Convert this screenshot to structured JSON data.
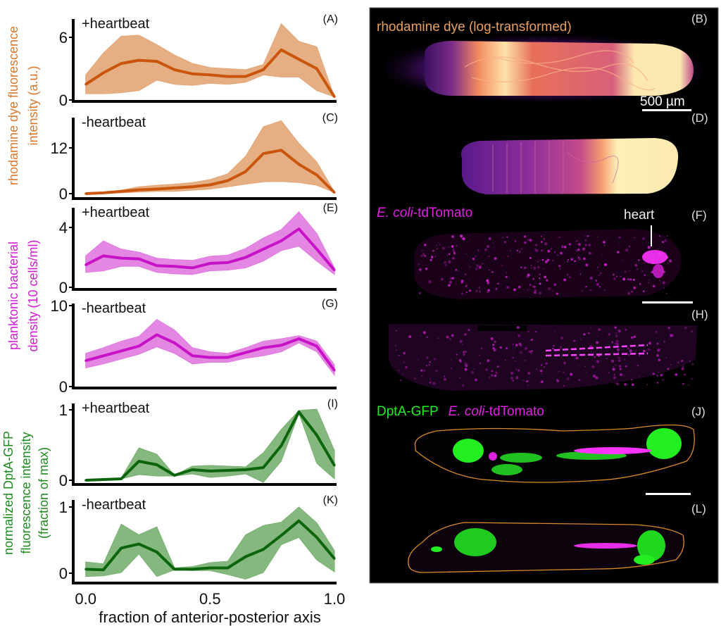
{
  "chart_data": [
    {
      "type": "area",
      "panel": "(A)",
      "condition": "+heartbeat",
      "yticks": [
        0,
        6
      ],
      "ylim": [
        0,
        7.8
      ],
      "color_line": "#c9560c",
      "color_fill": "#e3a575",
      "x": [
        0,
        0.071,
        0.143,
        0.214,
        0.286,
        0.357,
        0.429,
        0.5,
        0.571,
        0.643,
        0.714,
        0.786,
        0.857,
        0.929,
        1.0
      ],
      "mean": [
        1.5,
        2.6,
        3.5,
        3.8,
        3.7,
        2.9,
        2.5,
        2.4,
        2.25,
        2.25,
        2.9,
        4.8,
        3.9,
        3.0,
        0.3
      ],
      "upper": [
        2.4,
        4.5,
        6.1,
        6.2,
        5.3,
        4.3,
        3.5,
        3.1,
        3.0,
        2.9,
        3.4,
        7.3,
        5.6,
        5.1,
        0.3
      ],
      "lower": [
        0.6,
        0.6,
        0.7,
        0.9,
        1.9,
        1.5,
        1.4,
        1.6,
        1.5,
        1.7,
        2.4,
        2.2,
        2.2,
        0.9,
        0.3
      ]
    },
    {
      "type": "area",
      "panel": "(C)",
      "condition": "-heartbeat",
      "yticks": [
        0,
        12
      ],
      "ylim": [
        0,
        20
      ],
      "color_line": "#c9560c",
      "color_fill": "#e3a575",
      "x": [
        0,
        0.071,
        0.143,
        0.214,
        0.286,
        0.357,
        0.429,
        0.5,
        0.571,
        0.643,
        0.714,
        0.786,
        0.857,
        0.929,
        1.0
      ],
      "mean": [
        0,
        0.2,
        0.6,
        1.0,
        1.2,
        1.5,
        1.8,
        2.3,
        3.4,
        5.8,
        10.5,
        11.4,
        7.7,
        4.9,
        0.3
      ],
      "upper": [
        0,
        0.3,
        0.9,
        1.8,
        2.2,
        2.5,
        2.9,
        3.7,
        5.2,
        9.8,
        17.5,
        19.1,
        13.2,
        8.3,
        0.4
      ],
      "lower": [
        0,
        0,
        0.2,
        0.4,
        0.6,
        0.6,
        0.9,
        1.2,
        1.8,
        2.5,
        3.1,
        3.2,
        2.9,
        2.2,
        0.3
      ]
    },
    {
      "type": "area",
      "panel": "(E)",
      "condition": "+heartbeat",
      "yticks": [
        0,
        4
      ],
      "ylim": [
        0,
        5.3
      ],
      "color_line": "#c812c8",
      "color_fill": "#e07ae0",
      "x": [
        0,
        0.071,
        0.143,
        0.214,
        0.286,
        0.357,
        0.429,
        0.5,
        0.571,
        0.643,
        0.714,
        0.786,
        0.857,
        0.929,
        1.0
      ],
      "mean": [
        1.5,
        2.1,
        1.95,
        1.9,
        1.45,
        1.4,
        1.3,
        1.6,
        1.65,
        2.0,
        2.55,
        3.1,
        3.9,
        2.55,
        1.15
      ],
      "upper": [
        2.1,
        3.1,
        2.55,
        2.35,
        1.95,
        1.85,
        1.8,
        2.07,
        2.15,
        2.6,
        3.3,
        3.85,
        5.05,
        3.6,
        1.3
      ],
      "lower": [
        1.0,
        1.1,
        1.4,
        1.4,
        1.0,
        0.9,
        0.85,
        1.1,
        1.15,
        1.3,
        1.75,
        2.45,
        2.75,
        1.75,
        0.85
      ]
    },
    {
      "type": "area",
      "panel": "(G)",
      "condition": "-heartbeat",
      "yticks": [
        0,
        10
      ],
      "ylim": [
        0,
        10.2
      ],
      "color_line": "#c812c8",
      "color_fill": "#e07ae0",
      "x": [
        0,
        0.071,
        0.143,
        0.214,
        0.286,
        0.357,
        0.429,
        0.5,
        0.571,
        0.643,
        0.714,
        0.786,
        0.857,
        0.929,
        1.0
      ],
      "mean": [
        3.2,
        3.8,
        4.4,
        5.0,
        6.4,
        5.4,
        3.8,
        3.6,
        3.6,
        4.2,
        4.8,
        5.1,
        5.9,
        5.0,
        2.0
      ],
      "upper": [
        4.1,
        4.8,
        5.6,
        6.2,
        8.3,
        7.0,
        4.8,
        4.3,
        4.1,
        4.8,
        5.6,
        5.9,
        6.3,
        5.6,
        2.7
      ],
      "lower": [
        2.3,
        2.8,
        3.4,
        4.0,
        4.9,
        4.1,
        2.8,
        3.0,
        3.0,
        3.5,
        3.8,
        4.3,
        5.4,
        4.3,
        1.4
      ]
    },
    {
      "type": "area",
      "panel": "(I)",
      "condition": "+heartbeat",
      "yticks": [
        0,
        1
      ],
      "ylim": [
        -0.06,
        1.08
      ],
      "color_line": "#0c650c",
      "color_fill": "#78b070",
      "x": [
        0,
        0.071,
        0.143,
        0.214,
        0.286,
        0.357,
        0.429,
        0.5,
        0.571,
        0.643,
        0.714,
        0.786,
        0.857,
        0.929,
        1.0
      ],
      "mean": [
        0,
        0.01,
        0.02,
        0.27,
        0.22,
        0.07,
        0.15,
        0.13,
        0.14,
        0.15,
        0.18,
        0.49,
        0.97,
        0.64,
        0.21
      ],
      "upper": [
        0,
        0.01,
        0.03,
        0.46,
        0.37,
        0.07,
        0.2,
        0.21,
        0.2,
        0.19,
        0.39,
        0.72,
        0.99,
        1.01,
        0.42
      ],
      "lower": [
        0,
        0,
        0.02,
        0.08,
        0.06,
        0.06,
        0.09,
        0.04,
        0.06,
        0.09,
        -0.03,
        0.27,
        0.95,
        0.24,
        0.02
      ]
    },
    {
      "type": "area",
      "panel": "(K)",
      "condition": "-heartbeat",
      "yticks": [
        0,
        1
      ],
      "ylim": [
        -0.14,
        1.08
      ],
      "color_line": "#0c650c",
      "color_fill": "#78b070",
      "x": [
        0,
        0.071,
        0.143,
        0.214,
        0.286,
        0.357,
        0.429,
        0.5,
        0.571,
        0.643,
        0.714,
        0.786,
        0.857,
        0.929,
        1.0
      ],
      "mean": [
        0.06,
        0.05,
        0.38,
        0.44,
        0.32,
        0.06,
        0.06,
        0.08,
        0.08,
        0.25,
        0.36,
        0.57,
        0.79,
        0.54,
        0.22
      ],
      "upper": [
        0.17,
        0.14,
        0.74,
        0.58,
        0.7,
        0.08,
        0.1,
        0.16,
        0.18,
        0.58,
        0.72,
        0.77,
        1.0,
        0.76,
        0.34
      ],
      "lower": [
        -0.05,
        -0.04,
        0.01,
        0.29,
        -0.05,
        0.05,
        0.04,
        0.04,
        -0.02,
        -0.09,
        0.01,
        0.43,
        0.54,
        0.2,
        0.02
      ]
    }
  ],
  "axes": {
    "xticks": [
      "0.0",
      "0.5",
      "1.0"
    ],
    "xtick_values": [
      0,
      0.5,
      1.0
    ],
    "xlabel": "fraction of anterior-posterior axis",
    "ylabel_rhodamine": [
      "rhodamine dye fluorescence",
      "intensity (a.u.)"
    ],
    "ylabel_bacteria": [
      "planktonic bacterial",
      "density (10 cells/ml)"
    ],
    "ylabel_dpta": [
      "normalized DptA-GFP",
      "fluorescence intensity",
      "(fraction of max)"
    ]
  },
  "images": {
    "rhodamine_title": "rhodamine dye (log-transformed)",
    "scale_bar": "500 µm",
    "ecoli_italic": "E. coli",
    "ecoli_suffix": "-tdTomato",
    "heart_label": "heart",
    "dpta_label": "DptA-GFP",
    "labels": [
      "(B)",
      "(D)",
      "(F)",
      "(H)",
      "(J)",
      "(L)"
    ]
  },
  "colors": {
    "rhodamine": "#d9782c",
    "bacteria": "#d21bd2",
    "dpta": "#1f8a1f",
    "gfp": "#22ee22",
    "magenta": "#ff22ff"
  }
}
